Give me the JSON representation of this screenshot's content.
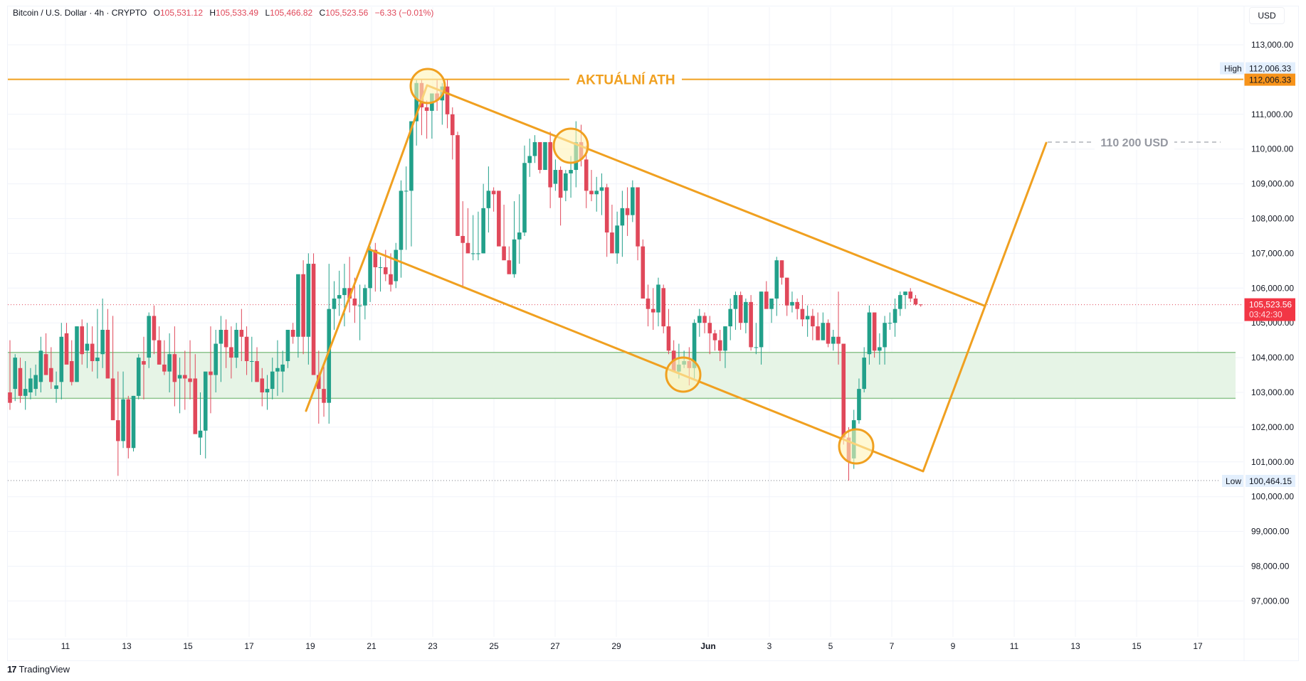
{
  "header": {
    "symbol": "Bitcoin / U.S. Dollar · 4h · CRYPTO",
    "open_label": "O",
    "open": "105,531.12",
    "high_label": "H",
    "high": "105,533.49",
    "low_label": "L",
    "low": "105,466.82",
    "close_label": "C",
    "close": "105,523.56",
    "change": "−6.33 (−0.01%)"
  },
  "currency_button": "USD",
  "branding": {
    "mark": "17",
    "name": "TradingView"
  },
  "colors": {
    "up": "#22a08a",
    "down": "#e0485a",
    "drawing": "#f0a020",
    "zone_fill": "#e3f3e3",
    "zone_border": "#8dc48d",
    "price_tag": "#f23645",
    "ath_tag": "#f7931a",
    "hilo_tag": "#e3effd"
  },
  "chart_data": {
    "type": "candlestick",
    "title": "Bitcoin / U.S. Dollar · 4h · CRYPTO",
    "timeframe": "4h",
    "xlabel": "",
    "ylabel": "USD",
    "ylim": [
      96000,
      113500
    ],
    "y_ticks": [
      "113,000.00",
      "112,000.00",
      "111,000.00",
      "110,000.00",
      "109,000.00",
      "108,000.00",
      "107,000.00",
      "106,000.00",
      "105,000.00",
      "104,000.00",
      "103,000.00",
      "102,000.00",
      "101,000.00",
      "100,000.00",
      "99,000.00",
      "98,000.00",
      "97,000.00"
    ],
    "y_tick_values": [
      113000,
      112000,
      111000,
      110000,
      109000,
      108000,
      107000,
      106000,
      105000,
      104000,
      103000,
      102000,
      101000,
      100000,
      99000,
      98000,
      97000
    ],
    "x_ticks": [
      "11",
      "13",
      "15",
      "17",
      "19",
      "21",
      "23",
      "25",
      "27",
      "29",
      "Jun",
      "3",
      "5",
      "7",
      "9",
      "11",
      "13",
      "15",
      "17"
    ],
    "grid": true,
    "price_markers": {
      "high": {
        "label": "High",
        "value": "112,006.33",
        "price": 112006.33
      },
      "ath": {
        "value": "112,006.33",
        "price": 112006.33
      },
      "current": {
        "value": "105,523.56",
        "countdown": "03:42:30",
        "price": 105523.56
      },
      "low": {
        "label": "Low",
        "value": "100,464.15",
        "price": 100464.15
      }
    },
    "annotations": {
      "ath_label": "AKTUÁLNÍ ATH",
      "target_label": "110 200 USD",
      "target_price": 110200,
      "support_zone": [
        102830,
        104150
      ]
    },
    "candles_ohlc": [
      [
        103000,
        104500,
        102500,
        102700
      ],
      [
        103100,
        104100,
        102750,
        104000
      ],
      [
        103700,
        104000,
        102700,
        102900
      ],
      [
        102900,
        103900,
        102500,
        103100
      ],
      [
        103000,
        103700,
        102800,
        103400
      ],
      [
        103100,
        103800,
        102900,
        103500
      ],
      [
        103300,
        104600,
        103000,
        104200
      ],
      [
        104100,
        104700,
        103500,
        103500
      ],
      [
        103700,
        104300,
        103100,
        103300
      ],
      [
        103100,
        103600,
        102700,
        103200
      ],
      [
        103300,
        105000,
        102800,
        104600
      ],
      [
        104700,
        105000,
        103900,
        103800
      ],
      [
        103900,
        104500,
        103200,
        103300
      ],
      [
        103300,
        104900,
        103300,
        104900
      ],
      [
        104900,
        105100,
        103800,
        104100
      ],
      [
        104200,
        105000,
        103700,
        104400
      ],
      [
        104400,
        104900,
        103600,
        103900
      ],
      [
        103900,
        105400,
        103400,
        104000
      ],
      [
        104100,
        105700,
        103700,
        104800
      ],
      [
        104800,
        105400,
        103500,
        103400
      ],
      [
        103400,
        105200,
        102200,
        102200
      ],
      [
        102200,
        103600,
        100600,
        101600
      ],
      [
        101600,
        103600,
        101400,
        102800
      ],
      [
        102800,
        102900,
        101100,
        101400
      ],
      [
        101400,
        102900,
        101300,
        102900
      ],
      [
        102900,
        104100,
        102800,
        104000
      ],
      [
        103900,
        104600,
        102800,
        103800
      ],
      [
        104000,
        105300,
        103700,
        105200
      ],
      [
        105200,
        105500,
        104100,
        104500
      ],
      [
        104500,
        104900,
        103800,
        103800
      ],
      [
        103800,
        104500,
        103500,
        103600
      ],
      [
        103600,
        104700,
        103000,
        104100
      ],
      [
        104100,
        104900,
        102600,
        103300
      ],
      [
        103400,
        104000,
        102400,
        103500
      ],
      [
        103500,
        104200,
        102500,
        103400
      ],
      [
        103400,
        104500,
        102800,
        103300
      ],
      [
        103400,
        104100,
        102500,
        101800
      ],
      [
        101700,
        103000,
        101200,
        101900
      ],
      [
        101900,
        103200,
        101100,
        103600
      ],
      [
        103600,
        104900,
        102400,
        103500
      ],
      [
        103500,
        104800,
        103000,
        104400
      ],
      [
        104400,
        105200,
        103300,
        104800
      ],
      [
        104800,
        105100,
        103700,
        104300
      ],
      [
        104300,
        104900,
        103400,
        104000
      ],
      [
        104000,
        105000,
        103700,
        104800
      ],
      [
        104800,
        105400,
        103900,
        104600
      ],
      [
        104600,
        104900,
        103500,
        103900
      ],
      [
        103900,
        104600,
        103300,
        103900
      ],
      [
        103900,
        104300,
        103300,
        103300
      ],
      [
        103400,
        103700,
        102600,
        103000
      ],
      [
        103000,
        103500,
        102500,
        103100
      ],
      [
        103100,
        104000,
        102800,
        103600
      ],
      [
        103600,
        104500,
        102900,
        103700
      ],
      [
        103600,
        104200,
        103000,
        103800
      ],
      [
        103900,
        104800,
        103700,
        104800
      ],
      [
        104800,
        105000,
        104400,
        104600
      ],
      [
        104600,
        105700,
        104000,
        106400
      ],
      [
        106400,
        106800,
        104100,
        104600
      ],
      [
        104600,
        107000,
        103800,
        106700
      ],
      [
        106700,
        107000,
        104900,
        103500
      ],
      [
        103500,
        104200,
        102100,
        103100
      ],
      [
        103100,
        103800,
        102300,
        102700
      ],
      [
        102700,
        106700,
        102100,
        105400
      ],
      [
        105400,
        106200,
        104800,
        105700
      ],
      [
        105700,
        106500,
        105200,
        105800
      ],
      [
        105800,
        106700,
        104900,
        106000
      ],
      [
        106000,
        106900,
        105300,
        105700
      ],
      [
        105700,
        106300,
        105000,
        105500
      ],
      [
        105500,
        106100,
        104500,
        105500
      ],
      [
        105500,
        106100,
        105100,
        106000
      ],
      [
        106000,
        107200,
        105600,
        107100
      ],
      [
        107100,
        107300,
        105900,
        106600
      ],
      [
        106600,
        106900,
        105900,
        106600
      ],
      [
        106600,
        107100,
        106200,
        106400
      ],
      [
        106400,
        107000,
        105900,
        106100
      ],
      [
        106200,
        107300,
        106000,
        107100
      ],
      [
        107100,
        109100,
        106300,
        108800
      ],
      [
        108800,
        109500,
        107100,
        108800
      ],
      [
        108800,
        110800,
        107200,
        110800
      ],
      [
        110800,
        112000,
        110100,
        111900
      ],
      [
        111900,
        112000,
        110400,
        111200
      ],
      [
        111200,
        111400,
        110300,
        111100
      ],
      [
        111100,
        111300,
        110300,
        111600
      ],
      [
        111600,
        112000,
        111100,
        111400
      ],
      [
        111400,
        111900,
        110700,
        111800
      ],
      [
        111800,
        112000,
        110600,
        111000
      ],
      [
        111000,
        111200,
        109700,
        110400
      ],
      [
        110400,
        110500,
        107600,
        107500
      ],
      [
        107500,
        108500,
        106000,
        107300
      ],
      [
        107300,
        108300,
        107100,
        107000
      ],
      [
        107000,
        108100,
        106800,
        107000
      ],
      [
        107000,
        108200,
        106800,
        107000
      ],
      [
        107000,
        109000,
        107000,
        108300
      ],
      [
        108300,
        109500,
        107600,
        108800
      ],
      [
        108800,
        108900,
        108200,
        108700
      ],
      [
        108800,
        108800,
        107400,
        107200
      ],
      [
        107200,
        108400,
        106900,
        106800
      ],
      [
        106800,
        107200,
        106600,
        106400
      ],
      [
        106400,
        108500,
        106300,
        107400
      ],
      [
        107400,
        108700,
        106700,
        107600
      ],
      [
        107600,
        110100,
        107500,
        109600
      ],
      [
        109600,
        110300,
        109200,
        109800
      ],
      [
        109800,
        110400,
        109600,
        110200
      ],
      [
        110200,
        110100,
        109300,
        109400
      ],
      [
        109400,
        110200,
        109400,
        110200
      ],
      [
        110200,
        110500,
        108300,
        108900
      ],
      [
        109000,
        109700,
        108800,
        109400
      ],
      [
        109400,
        109500,
        107800,
        108600
      ],
      [
        108800,
        109400,
        108500,
        109300
      ],
      [
        109300,
        109800,
        108600,
        109400
      ],
      [
        109400,
        110800,
        108900,
        110200
      ],
      [
        110200,
        110700,
        109500,
        109700
      ],
      [
        109700,
        110100,
        108300,
        108800
      ],
      [
        108800,
        109400,
        108500,
        108700
      ],
      [
        108700,
        109200,
        108200,
        108800
      ],
      [
        108800,
        109300,
        108100,
        108900
      ],
      [
        108900,
        109000,
        106900,
        107600
      ],
      [
        107600,
        108400,
        107400,
        107000
      ],
      [
        107000,
        108200,
        106700,
        107800
      ],
      [
        107800,
        108800,
        106900,
        108300
      ],
      [
        108300,
        108900,
        107500,
        108100
      ],
      [
        108100,
        109100,
        107900,
        108900
      ],
      [
        108900,
        108900,
        106800,
        107200
      ],
      [
        107200,
        107400,
        106000,
        105700
      ],
      [
        105700,
        106100,
        104900,
        105400
      ],
      [
        105400,
        106000,
        104800,
        105300
      ],
      [
        105300,
        106300,
        104900,
        106100
      ],
      [
        106000,
        106100,
        104700,
        104900
      ],
      [
        104900,
        105400,
        104100,
        104200
      ],
      [
        104200,
        104500,
        103600,
        103600
      ],
      [
        103600,
        104400,
        103400,
        103800
      ],
      [
        103800,
        104200,
        103700,
        103900
      ],
      [
        103900,
        104300,
        103200,
        103700
      ],
      [
        103700,
        105100,
        103400,
        105000
      ],
      [
        105000,
        105400,
        104600,
        105200
      ],
      [
        105200,
        105300,
        104700,
        105000
      ],
      [
        105000,
        105200,
        104100,
        104700
      ],
      [
        104700,
        104800,
        104200,
        104500
      ],
      [
        104500,
        104800,
        103900,
        104200
      ],
      [
        104200,
        104900,
        103700,
        104900
      ],
      [
        104900,
        105700,
        104500,
        105400
      ],
      [
        105400,
        105900,
        104800,
        105800
      ],
      [
        105800,
        105900,
        104800,
        105000
      ],
      [
        105000,
        105700,
        104700,
        105600
      ],
      [
        105600,
        105800,
        104200,
        104300
      ],
      [
        104300,
        105000,
        104100,
        104300
      ],
      [
        104300,
        105900,
        103800,
        105900
      ],
      [
        105900,
        106200,
        105500,
        105400
      ],
      [
        105400,
        105600,
        105000,
        105700
      ],
      [
        105700,
        106900,
        105200,
        106800
      ],
      [
        106800,
        106800,
        106100,
        106300
      ],
      [
        106300,
        106300,
        105200,
        105500
      ],
      [
        105500,
        105900,
        105300,
        105600
      ],
      [
        105600,
        105700,
        105100,
        105400
      ],
      [
        105400,
        105800,
        104900,
        105100
      ],
      [
        105100,
        105500,
        104600,
        105200
      ],
      [
        105200,
        105400,
        104500,
        104900
      ],
      [
        104900,
        105300,
        104500,
        104500
      ],
      [
        104500,
        105300,
        104500,
        105000
      ],
      [
        105000,
        105100,
        104300,
        104400
      ],
      [
        104400,
        104800,
        104200,
        104600
      ],
      [
        104600,
        105900,
        103800,
        104400
      ],
      [
        104400,
        104400,
        101500,
        101700
      ],
      [
        101700,
        102000,
        100464,
        101000
      ],
      [
        101100,
        102500,
        100800,
        102200
      ],
      [
        102200,
        103400,
        102100,
        103100
      ],
      [
        103100,
        104300,
        103000,
        104000
      ],
      [
        104100,
        105500,
        103800,
        105300
      ],
      [
        105300,
        105300,
        104000,
        104200
      ],
      [
        104200,
        104700,
        103800,
        104300
      ],
      [
        104300,
        105200,
        103800,
        105000
      ],
      [
        105000,
        105300,
        104800,
        105000
      ],
      [
        105000,
        105700,
        104600,
        105400
      ],
      [
        105400,
        105900,
        105200,
        105800
      ],
      [
        105800,
        105900,
        105400,
        105900
      ],
      [
        105900,
        106000,
        105600,
        105700
      ],
      [
        105700,
        105800,
        105500,
        105531
      ],
      [
        105531,
        105533,
        105467,
        105524
      ]
    ]
  }
}
